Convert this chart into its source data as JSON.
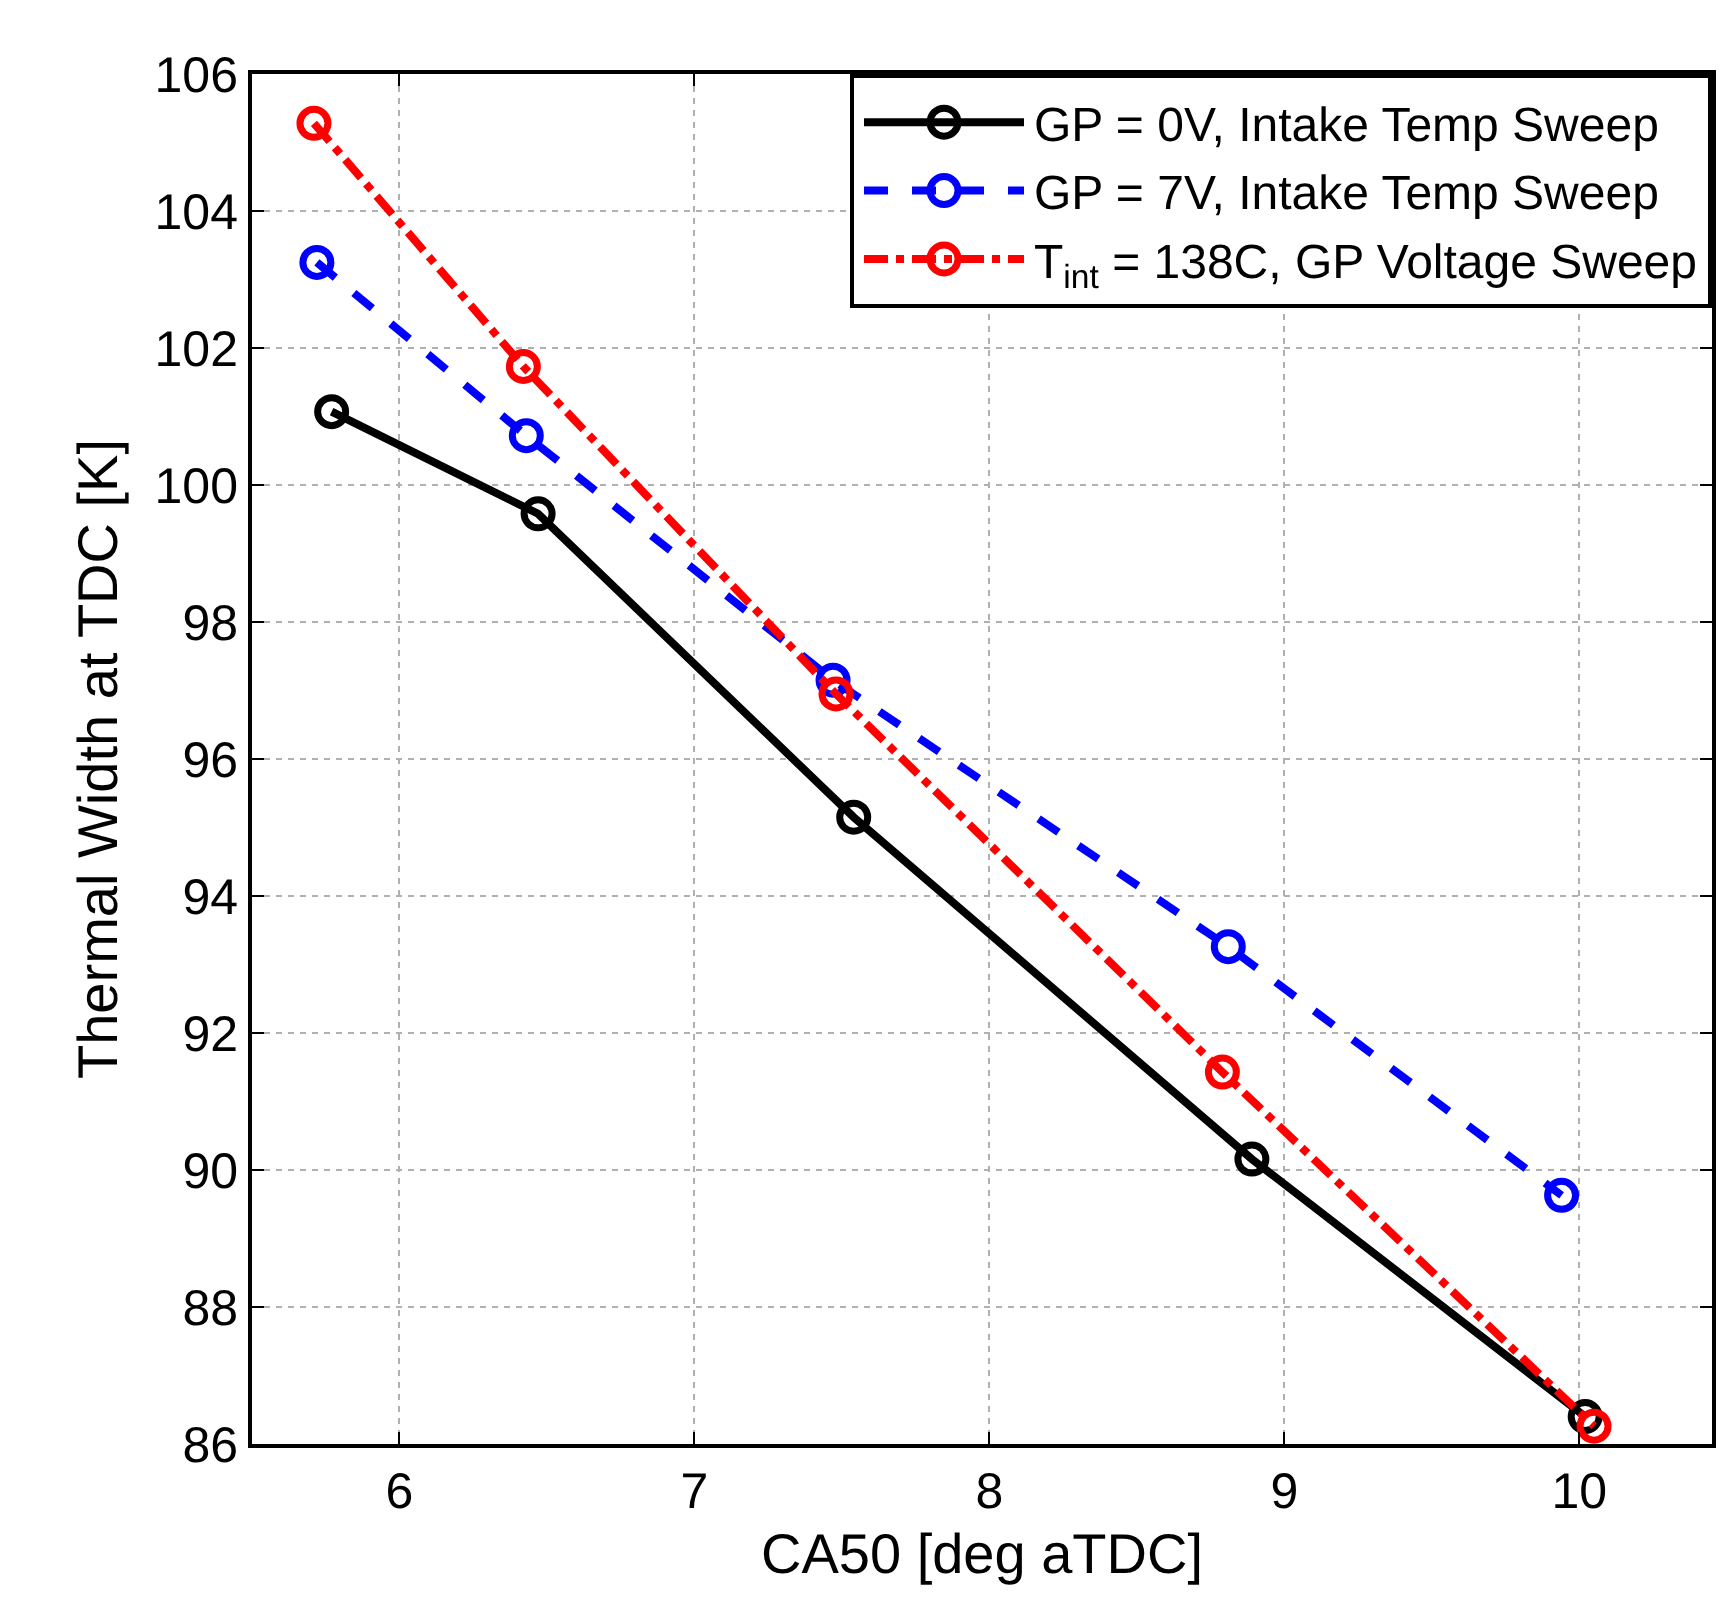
{
  "chart_data": {
    "type": "line",
    "xlabel": "CA50 [deg aTDC]",
    "ylabel": "Thermal Width at TDC [K]",
    "xlim": [
      5.5,
      10.45
    ],
    "xticks": [
      6,
      7,
      8,
      9,
      10
    ],
    "ylim": [
      86,
      106
    ],
    "yticks": [
      86,
      88,
      90,
      92,
      94,
      96,
      98,
      100,
      102,
      104,
      106
    ],
    "grid": true,
    "legend": "top right",
    "marker": "circle",
    "series": [
      {
        "name": "GP = 0V, Intake Temp Sweep",
        "color": "#000000",
        "line_style": "solid",
        "x": [
          5.77,
          6.47,
          7.54,
          8.89,
          10.02
        ],
        "values": [
          101.07,
          99.58,
          95.15,
          90.16,
          86.4
        ]
      },
      {
        "name": "GP = 7V, Intake Temp Sweep",
        "color": "#0000ff",
        "line_style": "dashed",
        "x": [
          5.72,
          6.43,
          7.47,
          8.81,
          9.94
        ],
        "values": [
          103.25,
          100.72,
          97.15,
          93.26,
          89.63
        ]
      },
      {
        "name": "T$_{int}$ = 138C, GP Voltage Sweep",
        "color": "#ff0000",
        "line_style": "dashdot",
        "x": [
          5.71,
          6.42,
          7.48,
          8.79,
          10.05
        ],
        "values": [
          105.28,
          101.73,
          96.95,
          91.43,
          86.26
        ]
      }
    ]
  }
}
